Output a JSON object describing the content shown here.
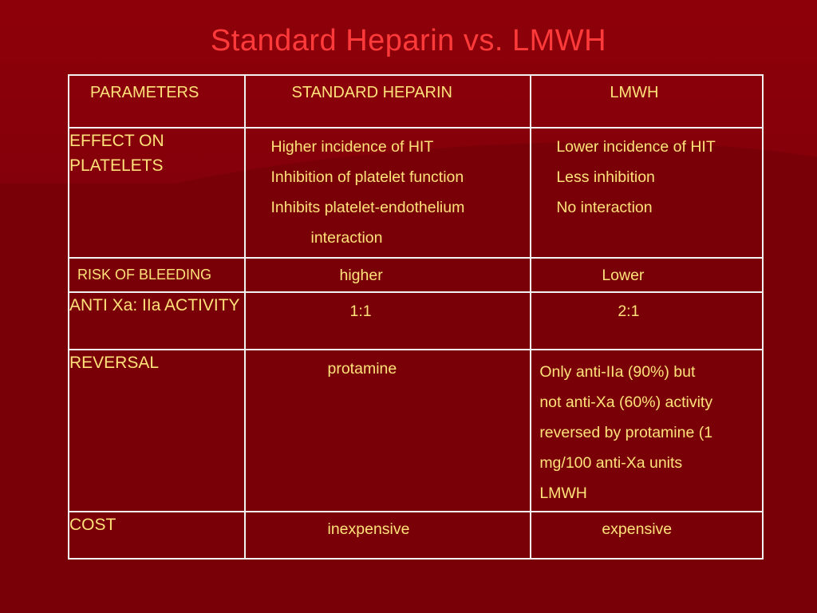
{
  "slide": {
    "title": "Standard Heparin vs. LMWH",
    "colors": {
      "background": "#7a0008",
      "title": "#ff3a3a",
      "text": "#ffe27a",
      "border": "#f2f2f2"
    }
  },
  "table": {
    "headers": [
      "PARAMETERS",
      "STANDARD HEPARIN",
      "LMWH"
    ],
    "rows": [
      {
        "parameter": "EFFECT ON PLATELETS",
        "heparin": [
          "Higher incidence of HIT",
          "Inhibition of platelet function",
          "Inhibits platelet-endothelium",
          "interaction"
        ],
        "lmwh": [
          "Lower incidence of HIT",
          "Less inhibition",
          "No interaction"
        ]
      },
      {
        "parameter": "RISK OF BLEEDING",
        "heparin": "higher",
        "lmwh": "Lower"
      },
      {
        "parameter": "ANTI Xa: IIa ACTIVITY",
        "heparin": "1:1",
        "lmwh": "2:1"
      },
      {
        "parameter": "REVERSAL",
        "heparin": "protamine",
        "lmwh": [
          "Only anti-IIa (90%) but",
          "not anti-Xa (60%) activity",
          "reversed by protamine (1",
          "mg/100 anti-Xa units",
          "LMWH"
        ]
      },
      {
        "parameter": "COST",
        "heparin": "inexpensive",
        "lmwh": "expensive"
      }
    ]
  }
}
